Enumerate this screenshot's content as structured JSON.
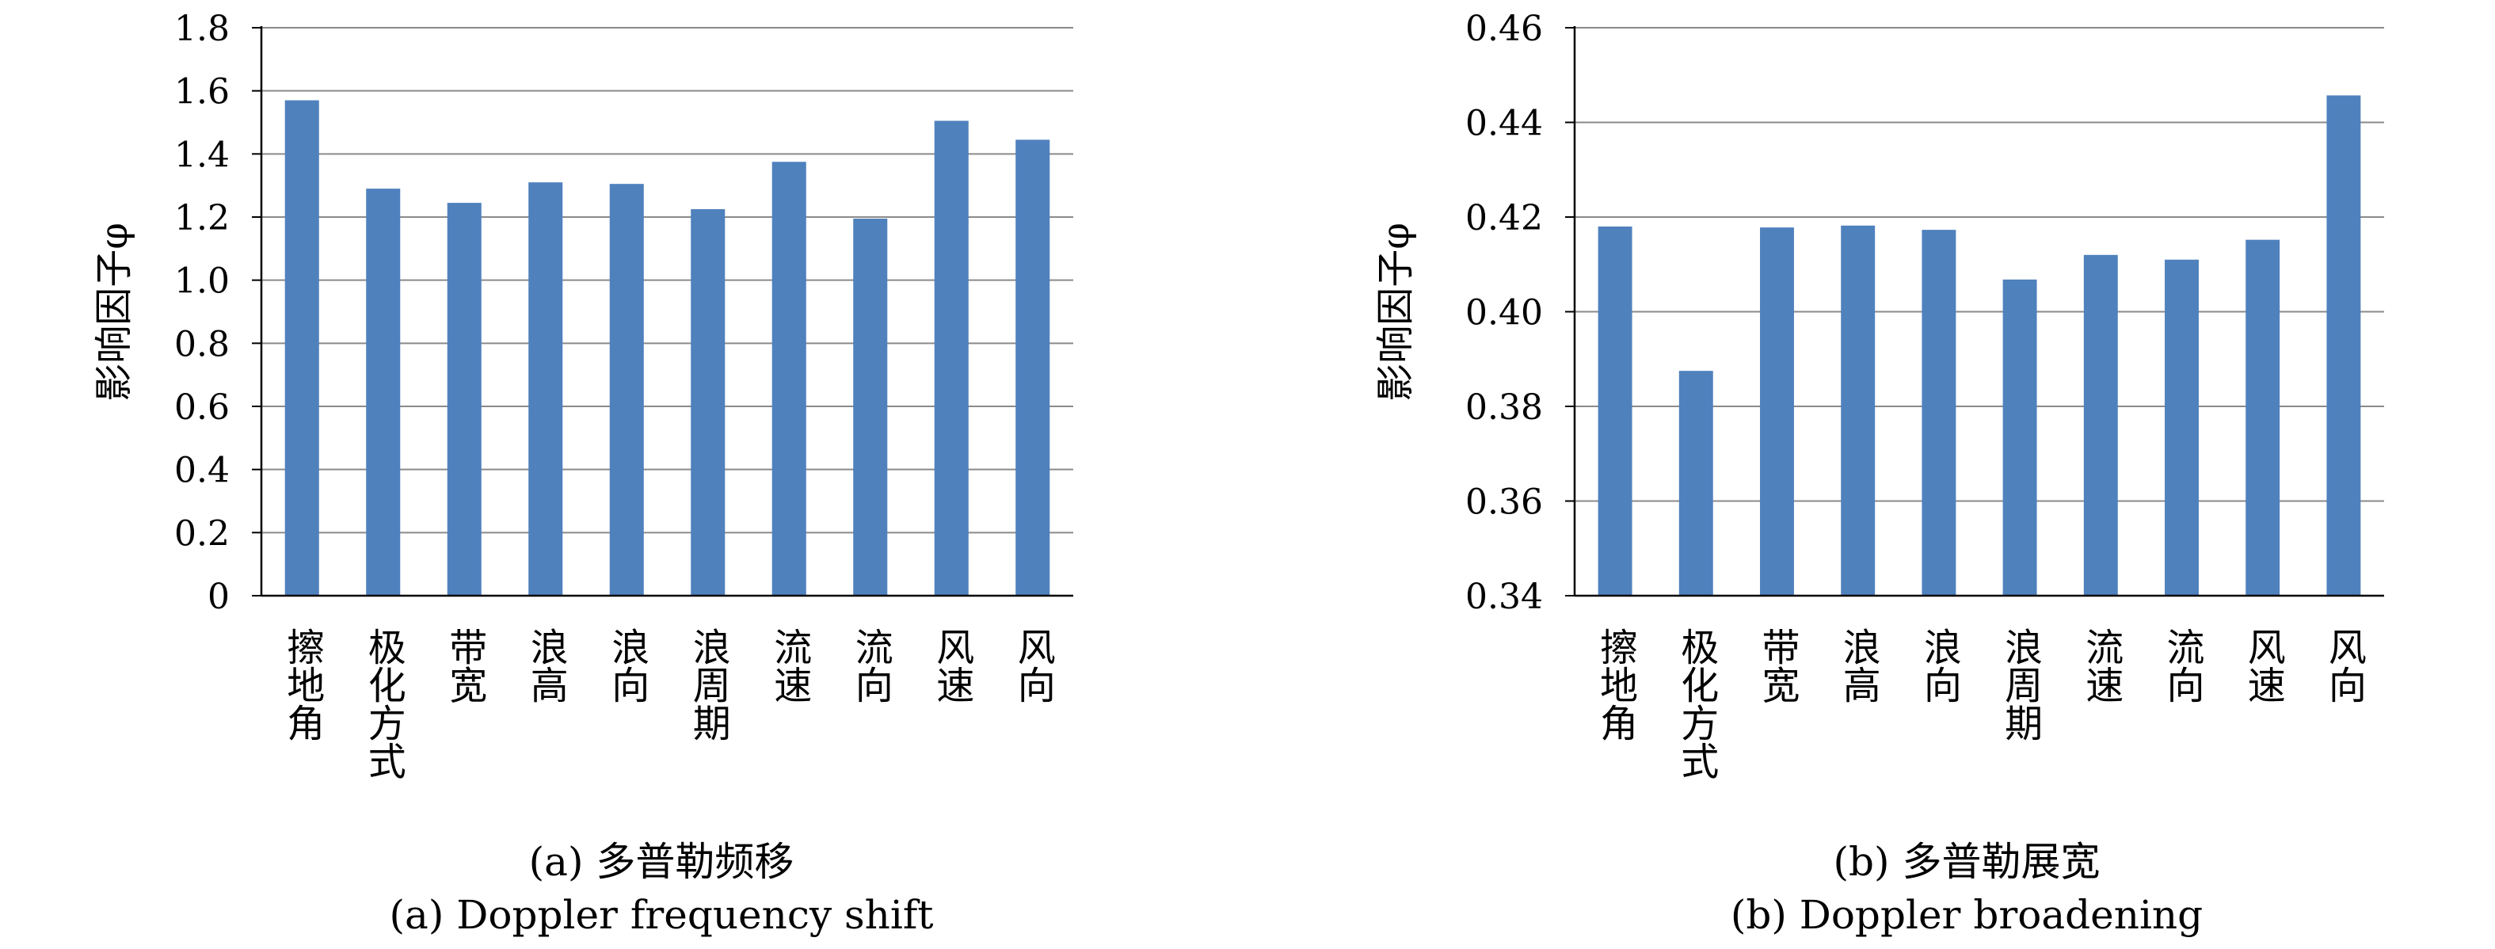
{
  "chart_data": [
    {
      "type": "bar",
      "caption_cn": "(a) 多普勒频移",
      "caption_en": "(a) Doppler frequency shift",
      "ylabel": "影响因子φ",
      "ylim": [
        0,
        1.8
      ],
      "yticks": [
        "0",
        "0.2",
        "0.4",
        "0.6",
        "0.8",
        "1.0",
        "1.2",
        "1.4",
        "1.6",
        "1.8"
      ],
      "grid": true,
      "bar_color": "#4f81bd",
      "categories": [
        "擦地角",
        "极化方式",
        "带宽",
        "浪高",
        "浪向",
        "浪周期",
        "流速",
        "流向",
        "风速",
        "风向"
      ],
      "values": [
        1.57,
        1.29,
        1.245,
        1.31,
        1.305,
        1.225,
        1.375,
        1.195,
        1.505,
        1.445
      ]
    },
    {
      "type": "bar",
      "caption_cn": "(b) 多普勒展宽",
      "caption_en": "(b) Doppler broadening",
      "ylabel": "影响因子φ",
      "ylim": [
        0.34,
        0.46
      ],
      "yticks": [
        "0.34",
        "0.36",
        "0.38",
        "0.40",
        "0.42",
        "0.44",
        "0.46"
      ],
      "grid": true,
      "bar_color": "#4f81bd",
      "categories": [
        "擦地角",
        "极化方式",
        "带宽",
        "浪高",
        "浪向",
        "浪周期",
        "流速",
        "流向",
        "风速",
        "风向"
      ],
      "values": [
        0.418,
        0.3875,
        0.4178,
        0.4182,
        0.4173,
        0.4068,
        0.412,
        0.411,
        0.4152,
        0.4457
      ]
    }
  ]
}
